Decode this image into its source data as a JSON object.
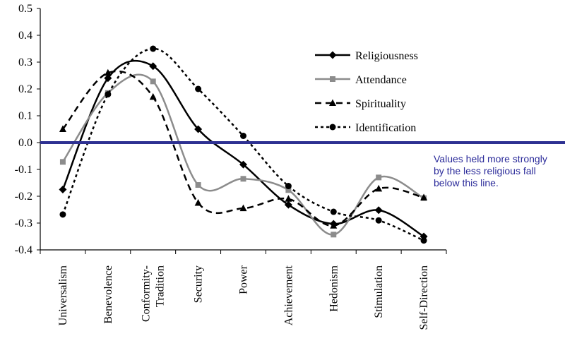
{
  "chart_data": {
    "type": "line",
    "title": "",
    "xlabel": "",
    "ylabel": "",
    "categories": [
      "Universalism",
      "Benevolence",
      "Conformity-Tradition",
      "Security",
      "Power",
      "Achievement",
      "Hedonism",
      "Stimulation",
      "Self-Direction"
    ],
    "category_lines": [
      [
        "Universalism"
      ],
      [
        "Benevolence"
      ],
      [
        "Conformity-",
        "Tradition"
      ],
      [
        "Security"
      ],
      [
        "Power"
      ],
      [
        "Achievement"
      ],
      [
        "Hedonism"
      ],
      [
        "Stimulation"
      ],
      [
        "Self-Direction"
      ]
    ],
    "ylim": [
      -0.4,
      0.5
    ],
    "yticks": [
      "0.5",
      "0.4",
      "0.3",
      "0.2",
      "0.1",
      "0.0",
      "-0.1",
      "-0.2",
      "-0.3",
      "-0.4"
    ],
    "ytick_values": [
      0.5,
      0.4,
      0.3,
      0.2,
      0.1,
      0.0,
      -0.1,
      -0.2,
      -0.3,
      -0.4
    ],
    "grid": false,
    "legend_position": "top-right",
    "series": [
      {
        "name": "Religiousness",
        "values": [
          -0.175,
          0.24,
          0.285,
          0.05,
          -0.082,
          -0.232,
          -0.303,
          -0.252,
          -0.35
        ],
        "color": "#000000",
        "dash": "solid",
        "marker": "diamond"
      },
      {
        "name": "Attendance",
        "values": [
          -0.072,
          0.185,
          0.228,
          -0.158,
          -0.135,
          -0.177,
          -0.343,
          -0.13,
          -0.207
        ],
        "color": "#8c8c8c",
        "dash": "solid",
        "marker": "square"
      },
      {
        "name": "Spirituality",
        "values": [
          0.05,
          0.26,
          0.17,
          -0.225,
          -0.245,
          -0.21,
          -0.31,
          -0.172,
          -0.205
        ],
        "color": "#000000",
        "dash": "dashed",
        "marker": "triangle"
      },
      {
        "name": "Identification",
        "values": [
          -0.268,
          0.18,
          0.35,
          0.2,
          0.025,
          -0.162,
          -0.258,
          -0.29,
          -0.365
        ],
        "color": "#000000",
        "dash": "dotted",
        "marker": "circle"
      }
    ],
    "reference_line": {
      "value": 0.0,
      "color": "#2e3192"
    },
    "annotation": {
      "lines": [
        "Values held more strongly",
        "by the less religious fall",
        "below this line."
      ],
      "color": "#2b2b9a"
    }
  }
}
